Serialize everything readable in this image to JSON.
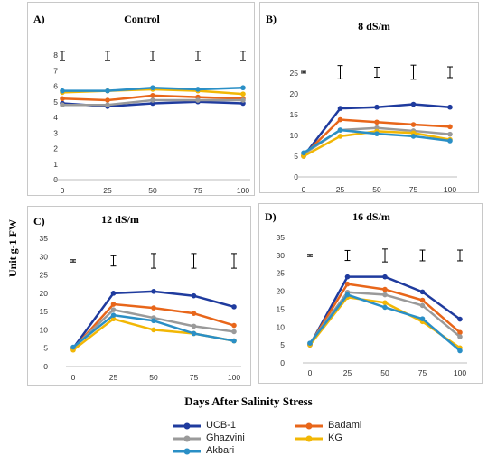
{
  "y_axis_title": "Unit g-1 FW",
  "x_axis_title": "Days After Salinity Stress",
  "colors": {
    "UCB-1": "#1f3b9e",
    "Badami": "#e8661a",
    "Ghazvini": "#9a9a9a",
    "KG": "#f2b705",
    "Akbari": "#2a8fc6"
  },
  "legend": [
    "UCB-1",
    "Badami",
    "Ghazvini",
    "KG",
    "Akbari"
  ],
  "chart_data": [
    {
      "type": "line",
      "panel_label": "A)",
      "title": "Control",
      "x": [
        0,
        25,
        50,
        75,
        100
      ],
      "ylim": [
        0,
        8
      ],
      "yticks": [
        0,
        1,
        2,
        3,
        4,
        5,
        6,
        7,
        8
      ],
      "error_bar_half_height": 0.3,
      "series": [
        {
          "name": "UCB-1",
          "values": [
            4.9,
            4.7,
            4.9,
            5.0,
            4.9
          ]
        },
        {
          "name": "Badami",
          "values": [
            5.2,
            5.1,
            5.4,
            5.3,
            5.2
          ]
        },
        {
          "name": "Ghazvini",
          "values": [
            4.8,
            4.8,
            5.1,
            5.1,
            5.1
          ]
        },
        {
          "name": "KG",
          "values": [
            5.6,
            5.7,
            5.8,
            5.7,
            5.5
          ]
        },
        {
          "name": "Akbari",
          "values": [
            5.7,
            5.7,
            5.9,
            5.8,
            5.9
          ]
        }
      ]
    },
    {
      "type": "line",
      "panel_label": "B)",
      "title": "8 dS/m",
      "x": [
        0,
        25,
        50,
        75,
        100
      ],
      "ylim": [
        0,
        25
      ],
      "yticks": [
        0,
        5,
        10,
        15,
        20,
        25
      ],
      "error_half_heights": [
        0.2,
        1.6,
        1.2,
        1.7,
        1.3
      ],
      "series": [
        {
          "name": "UCB-1",
          "values": [
            5.0,
            16.5,
            16.8,
            17.5,
            16.8
          ]
        },
        {
          "name": "Badami",
          "values": [
            5.2,
            13.8,
            13.2,
            12.6,
            12.1
          ]
        },
        {
          "name": "Ghazvini",
          "values": [
            5.5,
            11.3,
            11.8,
            11.1,
            10.3
          ]
        },
        {
          "name": "KG",
          "values": [
            5.0,
            9.8,
            11.0,
            10.6,
            9.0
          ]
        },
        {
          "name": "Akbari",
          "values": [
            5.8,
            11.3,
            10.4,
            9.8,
            8.7
          ]
        }
      ]
    },
    {
      "type": "line",
      "panel_label": "C)",
      "title": "12 dS/m",
      "x": [
        0,
        25,
        50,
        75,
        100
      ],
      "ylim": [
        0,
        35
      ],
      "yticks": [
        0,
        5,
        10,
        15,
        20,
        25,
        30,
        35
      ],
      "error_half_heights": [
        0.3,
        1.4,
        2.0,
        2.0,
        2.0
      ],
      "series": [
        {
          "name": "UCB-1",
          "values": [
            5.0,
            20.0,
            20.5,
            19.3,
            16.3
          ]
        },
        {
          "name": "Badami",
          "values": [
            4.8,
            17.0,
            16.0,
            14.5,
            11.2
          ]
        },
        {
          "name": "Ghazvini",
          "values": [
            5.0,
            15.5,
            13.3,
            11.0,
            9.5
          ]
        },
        {
          "name": "KG",
          "values": [
            4.5,
            13.0,
            10.0,
            9.0,
            7.0
          ]
        },
        {
          "name": "Akbari",
          "values": [
            5.3,
            14.0,
            12.5,
            9.0,
            7.0
          ]
        }
      ]
    },
    {
      "type": "line",
      "panel_label": "D)",
      "title": "16 dS/m",
      "x": [
        0,
        25,
        50,
        75,
        100
      ],
      "ylim": [
        0,
        35
      ],
      "yticks": [
        0,
        5,
        10,
        15,
        20,
        25,
        30,
        35
      ],
      "error_half_heights": [
        0.3,
        1.4,
        1.8,
        1.5,
        1.5
      ],
      "series": [
        {
          "name": "UCB-1",
          "values": [
            5.0,
            24.0,
            24.0,
            19.8,
            12.2
          ]
        },
        {
          "name": "Badami",
          "values": [
            5.2,
            22.0,
            20.5,
            17.5,
            8.5
          ]
        },
        {
          "name": "Ghazvini",
          "values": [
            5.5,
            19.7,
            19.0,
            16.0,
            7.3
          ]
        },
        {
          "name": "KG",
          "values": [
            5.0,
            18.3,
            16.8,
            11.5,
            4.2
          ]
        },
        {
          "name": "Akbari",
          "values": [
            5.5,
            19.0,
            15.5,
            12.3,
            3.4
          ]
        }
      ]
    }
  ]
}
